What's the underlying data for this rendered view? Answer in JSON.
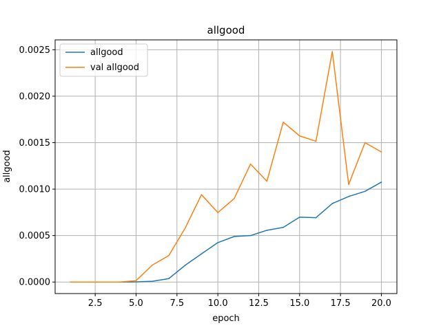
{
  "chart_data": {
    "type": "line",
    "title": "allgood",
    "xlabel": "epoch",
    "ylabel": "allgood",
    "xlim": [
      0.05,
      20.95
    ],
    "ylim": [
      -0.000124,
      0.002606
    ],
    "grid": true,
    "legend_position": "top-left",
    "x_ticks": [
      2.5,
      5.0,
      7.5,
      10.0,
      12.5,
      15.0,
      17.5,
      20.0
    ],
    "x_tick_labels": [
      "2.5",
      "5.0",
      "7.5",
      "10.0",
      "12.5",
      "15.0",
      "17.5",
      "20.0"
    ],
    "y_ticks": [
      0.0,
      0.0005,
      0.001,
      0.0015,
      0.002,
      0.0025
    ],
    "y_tick_labels": [
      "0.0000",
      "0.0005",
      "0.0010",
      "0.0015",
      "0.0020",
      "0.0025"
    ],
    "x": [
      1,
      2,
      3,
      4,
      5,
      6,
      7,
      8,
      9,
      10,
      11,
      12,
      13,
      14,
      15,
      16,
      17,
      18,
      19,
      20
    ],
    "series": [
      {
        "name": "allgood",
        "color": "#1f77b4",
        "values": [
          0.0,
          0.0,
          0.0,
          0.0,
          2e-06,
          8e-06,
          3.7e-05,
          0.00018,
          0.000303,
          0.000424,
          0.00049,
          0.0005,
          0.000557,
          0.000588,
          0.000698,
          0.000693,
          0.000845,
          0.000921,
          0.000976,
          0.001075
        ]
      },
      {
        "name": "val allgood",
        "color": "#ff7f0e",
        "values": [
          0.0,
          0.0,
          0.0,
          0.0,
          1.5e-05,
          0.000183,
          0.000285,
          0.00058,
          0.00094,
          0.000748,
          0.000898,
          0.00127,
          0.001085,
          0.00172,
          0.001573,
          0.001515,
          0.00248,
          0.00105,
          0.0015,
          0.0014
        ]
      }
    ]
  }
}
